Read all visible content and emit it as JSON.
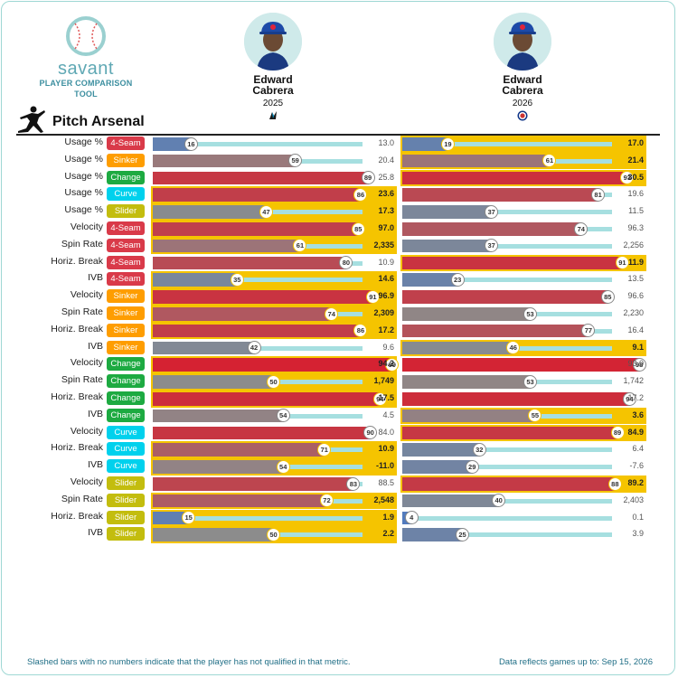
{
  "logo": {
    "word": "savant",
    "tool": "PLAYER COMPARISON TOOL"
  },
  "players": [
    {
      "first": "Edward",
      "last": "Cabrera",
      "year": "2025",
      "team_icon": "marlins-logo-icon"
    },
    {
      "first": "Edward",
      "last": "Cabrera",
      "year": "2026",
      "team_icon": "cubs-logo-icon"
    }
  ],
  "section_title": "Pitch Arsenal",
  "pitch_colors": {
    "4-Seam": "#d93a49",
    "Sinker": "#fe9d00",
    "Change": "#1daa41",
    "Curve": "#00d1ed",
    "Slider": "#c3bd0e"
  },
  "rows": [
    {
      "metric": "Usage %",
      "pitch": "4-Seam",
      "p1": {
        "pct": 16,
        "value": "13.0",
        "win": false
      },
      "p2": {
        "pct": 19,
        "value": "17.0",
        "win": true
      }
    },
    {
      "metric": "Usage %",
      "pitch": "Sinker",
      "p1": {
        "pct": 59,
        "value": "20.4",
        "win": false
      },
      "p2": {
        "pct": 61,
        "value": "21.4",
        "win": true
      }
    },
    {
      "metric": "Usage %",
      "pitch": "Change",
      "p1": {
        "pct": 89,
        "value": "25.8",
        "win": false
      },
      "p2": {
        "pct": 93,
        "value": "30.5",
        "win": true
      }
    },
    {
      "metric": "Usage %",
      "pitch": "Curve",
      "p1": {
        "pct": 86,
        "value": "23.6",
        "win": true
      },
      "p2": {
        "pct": 81,
        "value": "19.6",
        "win": false
      }
    },
    {
      "metric": "Usage %",
      "pitch": "Slider",
      "p1": {
        "pct": 47,
        "value": "17.3",
        "win": true
      },
      "p2": {
        "pct": 37,
        "value": "11.5",
        "win": false
      }
    },
    {
      "metric": "Velocity",
      "pitch": "4-Seam",
      "p1": {
        "pct": 85,
        "value": "97.0",
        "win": true
      },
      "p2": {
        "pct": 74,
        "value": "96.3",
        "win": false
      }
    },
    {
      "metric": "Spin Rate",
      "pitch": "4-Seam",
      "p1": {
        "pct": 61,
        "value": "2,335",
        "win": true
      },
      "p2": {
        "pct": 37,
        "value": "2,256",
        "win": false
      }
    },
    {
      "metric": "Horiz. Break",
      "pitch": "4-Seam",
      "p1": {
        "pct": 80,
        "value": "10.9",
        "win": false
      },
      "p2": {
        "pct": 91,
        "value": "11.9",
        "win": true
      }
    },
    {
      "metric": "IVB",
      "pitch": "4-Seam",
      "p1": {
        "pct": 35,
        "value": "14.6",
        "win": true
      },
      "p2": {
        "pct": 23,
        "value": "13.5",
        "win": false
      }
    },
    {
      "metric": "Velocity",
      "pitch": "Sinker",
      "p1": {
        "pct": 91,
        "value": "96.9",
        "win": true
      },
      "p2": {
        "pct": 85,
        "value": "96.6",
        "win": false
      }
    },
    {
      "metric": "Spin Rate",
      "pitch": "Sinker",
      "p1": {
        "pct": 74,
        "value": "2,309",
        "win": true
      },
      "p2": {
        "pct": 53,
        "value": "2,230",
        "win": false
      }
    },
    {
      "metric": "Horiz. Break",
      "pitch": "Sinker",
      "p1": {
        "pct": 86,
        "value": "17.2",
        "win": true
      },
      "p2": {
        "pct": 77,
        "value": "16.4",
        "win": false
      }
    },
    {
      "metric": "IVB",
      "pitch": "Sinker",
      "p1": {
        "pct": 42,
        "value": "9.6",
        "win": false
      },
      "p2": {
        "pct": 46,
        "value": "9.1",
        "win": true
      }
    },
    {
      "metric": "Velocity",
      "pitch": "Change",
      "p1": {
        "pct": 99,
        "value": "94.2",
        "win": true
      },
      "p2": {
        "pct": 98,
        "value": "93.0",
        "win": false
      }
    },
    {
      "metric": "Spin Rate",
      "pitch": "Change",
      "p1": {
        "pct": 50,
        "value": "1,749",
        "win": true
      },
      "p2": {
        "pct": 53,
        "value": "1,742",
        "win": false
      }
    },
    {
      "metric": "Horiz. Break",
      "pitch": "Change",
      "p1": {
        "pct": 94,
        "value": "17.5",
        "win": true
      },
      "p2": {
        "pct": 94,
        "value": "17.2",
        "win": false
      }
    },
    {
      "metric": "IVB",
      "pitch": "Change",
      "p1": {
        "pct": 54,
        "value": "4.5",
        "win": false
      },
      "p2": {
        "pct": 55,
        "value": "3.6",
        "win": true
      }
    },
    {
      "metric": "Velocity",
      "pitch": "Curve",
      "p1": {
        "pct": 90,
        "value": "84.0",
        "win": false
      },
      "p2": {
        "pct": 89,
        "value": "84.9",
        "win": true
      }
    },
    {
      "metric": "Horiz. Break",
      "pitch": "Curve",
      "p1": {
        "pct": 71,
        "value": "10.9",
        "win": true
      },
      "p2": {
        "pct": 32,
        "value": "6.4",
        "win": false
      }
    },
    {
      "metric": "IVB",
      "pitch": "Curve",
      "p1": {
        "pct": 54,
        "value": "-11.0",
        "win": true
      },
      "p2": {
        "pct": 29,
        "value": "-7.6",
        "win": false
      }
    },
    {
      "metric": "Velocity",
      "pitch": "Slider",
      "p1": {
        "pct": 83,
        "value": "88.5",
        "win": false
      },
      "p2": {
        "pct": 88,
        "value": "89.2",
        "win": true
      }
    },
    {
      "metric": "Spin Rate",
      "pitch": "Slider",
      "p1": {
        "pct": 72,
        "value": "2,548",
        "win": true
      },
      "p2": {
        "pct": 40,
        "value": "2,403",
        "win": false
      }
    },
    {
      "metric": "Horiz. Break",
      "pitch": "Slider",
      "p1": {
        "pct": 15,
        "value": "1.9",
        "win": true
      },
      "p2": {
        "pct": 4,
        "value": "0.1",
        "win": false
      }
    },
    {
      "metric": "IVB",
      "pitch": "Slider",
      "p1": {
        "pct": 50,
        "value": "2.2",
        "win": true
      },
      "p2": {
        "pct": 25,
        "value": "3.9",
        "win": false
      }
    }
  ],
  "footer": {
    "note": "Slashed bars with no numbers indicate that the player has not qualified in that metric.",
    "updated": "Data reflects games up to: Sep 15, 2026"
  }
}
